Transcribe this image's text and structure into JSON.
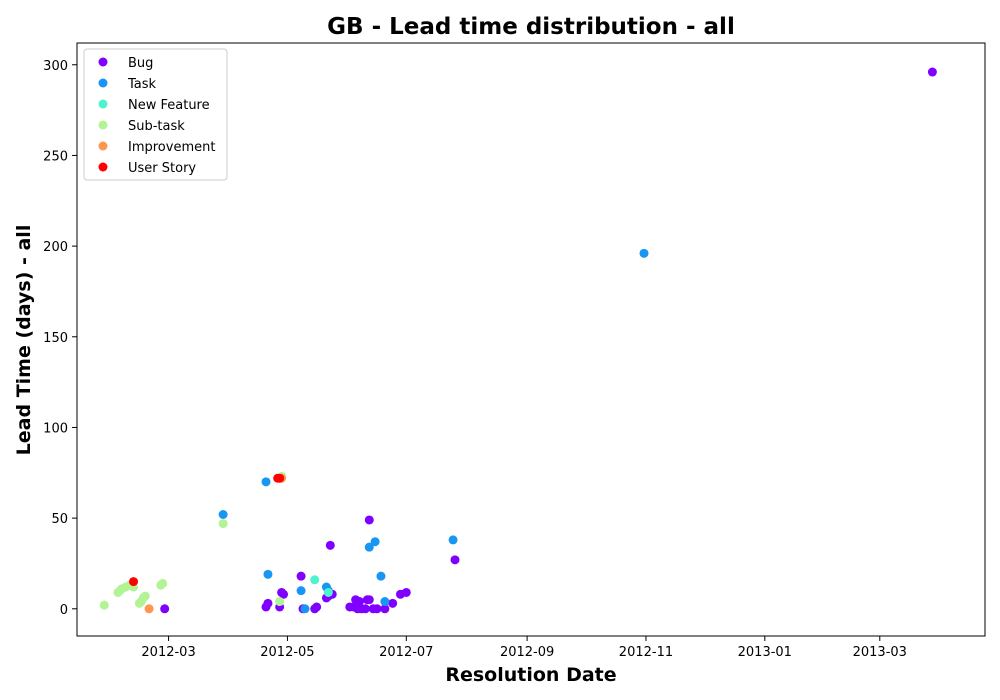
{
  "chart_data": {
    "type": "scatter",
    "title": "GB - Lead time distribution - all",
    "xlabel": "Resolution Date",
    "ylabel": "Lead Time (days) - all",
    "xlim": [
      "2012-01-14",
      "2013-04-24"
    ],
    "ylim": [
      -15,
      312
    ],
    "x_ticks": [
      "2012-03",
      "2012-05",
      "2012-07",
      "2012-09",
      "2012-11",
      "2013-01",
      "2013-03"
    ],
    "y_ticks": [
      0,
      50,
      100,
      150,
      200,
      250,
      300
    ],
    "grid": false,
    "legend_position": "top-left",
    "series": [
      {
        "name": "Bug",
        "color": "#8000ff",
        "points": [
          {
            "x": "2012-02-28",
            "y": 0
          },
          {
            "x": "2012-04-20",
            "y": 1
          },
          {
            "x": "2012-04-21",
            "y": 3
          },
          {
            "x": "2012-04-27",
            "y": 1
          },
          {
            "x": "2012-04-28",
            "y": 9
          },
          {
            "x": "2012-04-29",
            "y": 8
          },
          {
            "x": "2012-05-08",
            "y": 18
          },
          {
            "x": "2012-05-09",
            "y": 0
          },
          {
            "x": "2012-05-15",
            "y": 0
          },
          {
            "x": "2012-05-16",
            "y": 1
          },
          {
            "x": "2012-05-21",
            "y": 6
          },
          {
            "x": "2012-05-22",
            "y": 7
          },
          {
            "x": "2012-05-24",
            "y": 8
          },
          {
            "x": "2012-05-23",
            "y": 35
          },
          {
            "x": "2012-06-02",
            "y": 1
          },
          {
            "x": "2012-06-04",
            "y": 1
          },
          {
            "x": "2012-06-05",
            "y": 5
          },
          {
            "x": "2012-06-06",
            "y": 0
          },
          {
            "x": "2012-06-07",
            "y": 4
          },
          {
            "x": "2012-06-08",
            "y": 0
          },
          {
            "x": "2012-06-10",
            "y": 0
          },
          {
            "x": "2012-06-11",
            "y": 5
          },
          {
            "x": "2012-06-12",
            "y": 5
          },
          {
            "x": "2012-06-12",
            "y": 49
          },
          {
            "x": "2012-06-14",
            "y": 0
          },
          {
            "x": "2012-06-16",
            "y": 0
          },
          {
            "x": "2012-06-20",
            "y": 0
          },
          {
            "x": "2012-06-24",
            "y": 3
          },
          {
            "x": "2012-06-28",
            "y": 8
          },
          {
            "x": "2012-07-01",
            "y": 9
          },
          {
            "x": "2012-07-26",
            "y": 27
          },
          {
            "x": "2013-03-28",
            "y": 296
          }
        ]
      },
      {
        "name": "Task",
        "color": "#1996f3",
        "points": [
          {
            "x": "2012-03-29",
            "y": 52
          },
          {
            "x": "2012-04-20",
            "y": 70
          },
          {
            "x": "2012-04-21",
            "y": 19
          },
          {
            "x": "2012-05-08",
            "y": 10
          },
          {
            "x": "2012-05-10",
            "y": 0
          },
          {
            "x": "2012-05-21",
            "y": 12
          },
          {
            "x": "2012-05-22",
            "y": 10
          },
          {
            "x": "2012-06-12",
            "y": 34
          },
          {
            "x": "2012-06-15",
            "y": 37
          },
          {
            "x": "2012-06-18",
            "y": 18
          },
          {
            "x": "2012-06-20",
            "y": 4
          },
          {
            "x": "2012-07-25",
            "y": 38
          },
          {
            "x": "2012-10-31",
            "y": 196
          }
        ]
      },
      {
        "name": "New Feature",
        "color": "#4df3ce",
        "points": [
          {
            "x": "2012-05-15",
            "y": 16
          },
          {
            "x": "2012-05-22",
            "y": 9
          }
        ]
      },
      {
        "name": "Sub-task",
        "color": "#b2f396",
        "points": [
          {
            "x": "2012-01-28",
            "y": 2
          },
          {
            "x": "2012-02-04",
            "y": 9
          },
          {
            "x": "2012-02-05",
            "y": 10
          },
          {
            "x": "2012-02-06",
            "y": 11
          },
          {
            "x": "2012-02-08",
            "y": 12
          },
          {
            "x": "2012-02-10",
            "y": 13
          },
          {
            "x": "2012-02-12",
            "y": 12
          },
          {
            "x": "2012-02-15",
            "y": 3
          },
          {
            "x": "2012-02-16",
            "y": 4
          },
          {
            "x": "2012-02-17",
            "y": 6
          },
          {
            "x": "2012-02-18",
            "y": 7
          },
          {
            "x": "2012-02-26",
            "y": 13
          },
          {
            "x": "2012-02-27",
            "y": 14
          },
          {
            "x": "2012-03-29",
            "y": 47
          },
          {
            "x": "2012-04-27",
            "y": 4
          },
          {
            "x": "2012-04-28",
            "y": 73
          }
        ]
      },
      {
        "name": "Improvement",
        "color": "#ff964f",
        "points": [
          {
            "x": "2012-02-20",
            "y": 0
          },
          {
            "x": "2012-04-28",
            "y": 72
          }
        ]
      },
      {
        "name": "User Story",
        "color": "#ff0000",
        "points": [
          {
            "x": "2012-02-12",
            "y": 15
          },
          {
            "x": "2012-04-26",
            "y": 72
          },
          {
            "x": "2012-04-27",
            "y": 72
          }
        ]
      }
    ]
  }
}
